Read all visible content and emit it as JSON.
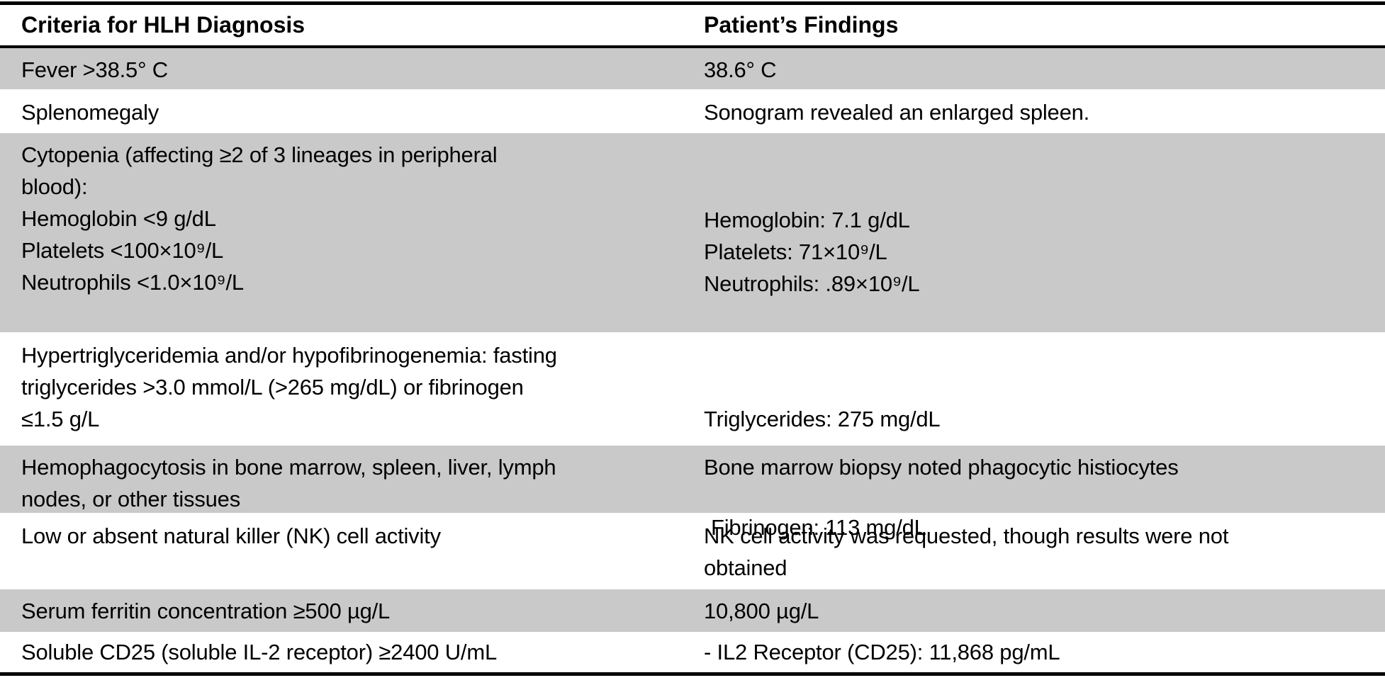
{
  "header": {
    "criteria_label": "Criteria for HLH Diagnosis",
    "findings_label": "Patient’s Findings"
  },
  "colors": {
    "shaded_row": "#c9c9c9",
    "rule": "#000000",
    "background": "#ffffff",
    "text": "#000000"
  },
  "rows": [
    {
      "criteria_lines": [
        "Fever >38.5° C"
      ],
      "findings_lines": [
        "38.6° C"
      ]
    },
    {
      "criteria_lines": [
        "Splenomegaly"
      ],
      "findings_lines": [
        "Sonogram revealed an enlarged spleen."
      ]
    },
    {
      "criteria_lines": [
        "Cytopenia (affecting ≥2 of 3 lineages in peripheral",
        "blood):",
        "Hemoglobin <9 g/dL",
        "Platelets <100×10⁹/L",
        "Neutrophils <1.0×10⁹/L"
      ],
      "findings_lines": [
        "Hemoglobin: 7.1 g/dL",
        "Platelets: 71×10⁹/L",
        "Neutrophils: .89×10⁹/L"
      ]
    },
    {
      "criteria_lines": [
        "Hypertriglyceridemia and/or hypofibrinogenemia: fasting",
        "triglycerides >3.0 mmol/L (>265 mg/dL) or fibrinogen",
        "≤1.5 g/L"
      ],
      "findings_lines": [
        "Triglycerides: 275 mg/dL",
        "Fibrinogen: 113 mg/dL"
      ]
    },
    {
      "criteria_lines": [
        "Hemophagocytosis in bone marrow, spleen, liver, lymph",
        "nodes, or other tissues"
      ],
      "findings_lines": [
        "Bone marrow biopsy noted phagocytic histiocytes"
      ]
    },
    {
      "criteria_lines": [
        "Low or absent natural killer (NK) cell activity"
      ],
      "findings_lines": [
        "NK cell activity was requested, though results were not",
        "obtained"
      ]
    },
    {
      "criteria_lines": [
        "Serum ferritin concentration ≥500 µg/L"
      ],
      "findings_lines": [
        "10,800 µg/L"
      ]
    },
    {
      "criteria_lines": [
        "Soluble CD25 (soluble IL-2 receptor) ≥2400 U/mL"
      ],
      "findings_lines": [
        "- IL2 Receptor (CD25): 11,868 pg/mL"
      ]
    }
  ]
}
